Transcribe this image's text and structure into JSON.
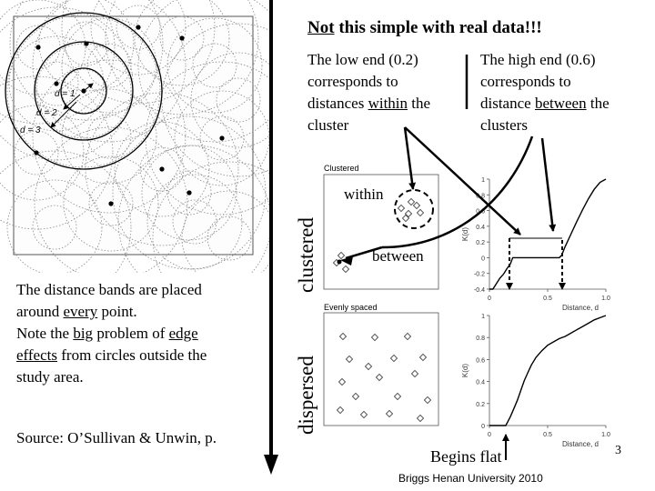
{
  "title": {
    "lead": "Not",
    "rest": " this simple with real data!!!"
  },
  "low_end": {
    "line1": "The low end  (0.2)",
    "line2": "corresponds to",
    "line3_pre": "distances ",
    "line3_u": "within",
    "line3_post": " the",
    "line4": "cluster"
  },
  "high_end": {
    "line1": "The high end  (0.6)",
    "line2": "corresponds to",
    "line3_pre": "distance ",
    "line3_u": "between",
    "line3_post": " the",
    "line4": "clusters"
  },
  "note": {
    "line1": "The distance bands are placed",
    "line2_pre": "around ",
    "line2_u": "every",
    "line2_post": " point.",
    "line3_pre": "Note the ",
    "line3_u1": "big",
    "line3_mid": " problem of ",
    "line3_u2": "edge",
    "line4_u": "effects",
    "line4_post": " from circles outside the",
    "line5": "study area."
  },
  "source": "Source: O’Sullivan & Unwin, p.",
  "footer": "Briggs  Henan University 2010",
  "page_number": "3",
  "labels": {
    "clustered": "clustered",
    "dispersed": "dispersed",
    "within": "within",
    "between": "between",
    "begins_flat": "Begins flat"
  },
  "circle_figure": {
    "d1": "d = 1",
    "d2": "d = 2",
    "d3": "d = 3"
  },
  "panel_clustered": {
    "title": "Clustered"
  },
  "panel_dispersed": {
    "title": "Evenly spaced"
  },
  "chart_data": [
    {
      "type": "line",
      "title": "",
      "xlabel": "Distance, d",
      "ylabel": "K(d)",
      "xlim": [
        0,
        1.0
      ],
      "ylim": [
        -0.4,
        1.0
      ],
      "x_ticks": [
        "0",
        "0.5",
        "1.0"
      ],
      "y_ticks": [
        "1",
        "0.8",
        "0.6",
        "0.4",
        "0.2",
        "0",
        "-0.2",
        "-0.4"
      ],
      "series": [
        {
          "x": [
            0.0,
            0.03,
            0.06,
            0.09,
            0.12,
            0.15,
            0.18,
            0.2,
            0.22,
            0.26,
            0.3,
            0.35,
            0.4,
            0.45,
            0.5,
            0.55,
            0.6,
            0.62,
            0.65,
            0.7,
            0.75,
            0.8,
            0.85,
            0.9,
            0.95,
            1.0
          ],
          "y": [
            -0.4,
            -0.4,
            -0.33,
            -0.26,
            -0.21,
            -0.14,
            -0.08,
            0.0,
            0.0,
            0.0,
            0.0,
            0.0,
            0.0,
            0.0,
            0.0,
            0.0,
            0.0,
            0.03,
            0.14,
            0.3,
            0.46,
            0.61,
            0.75,
            0.87,
            0.96,
            1.0
          ]
        }
      ]
    },
    {
      "type": "line",
      "title": "",
      "xlabel": "Distance, d",
      "ylabel": "K(d)",
      "xlim": [
        0,
        1.0
      ],
      "ylim": [
        0,
        1.0
      ],
      "x_ticks": [
        "0",
        "0.5",
        "1.0"
      ],
      "y_ticks": [
        "1",
        "0.8",
        "0.6",
        "0.4",
        "0.2",
        "0"
      ],
      "series": [
        {
          "x": [
            0.0,
            0.05,
            0.1,
            0.14,
            0.16,
            0.18,
            0.2,
            0.22,
            0.24,
            0.26,
            0.28,
            0.3,
            0.33,
            0.36,
            0.4,
            0.45,
            0.5,
            0.55,
            0.6,
            0.65,
            0.7,
            0.75,
            0.8,
            0.85,
            0.9,
            0.95,
            1.0
          ],
          "y": [
            0.0,
            0.0,
            0.0,
            0.0,
            0.04,
            0.08,
            0.13,
            0.18,
            0.23,
            0.29,
            0.35,
            0.41,
            0.48,
            0.55,
            0.62,
            0.68,
            0.73,
            0.76,
            0.79,
            0.81,
            0.84,
            0.87,
            0.9,
            0.93,
            0.96,
            0.98,
            1.0
          ]
        }
      ]
    }
  ]
}
